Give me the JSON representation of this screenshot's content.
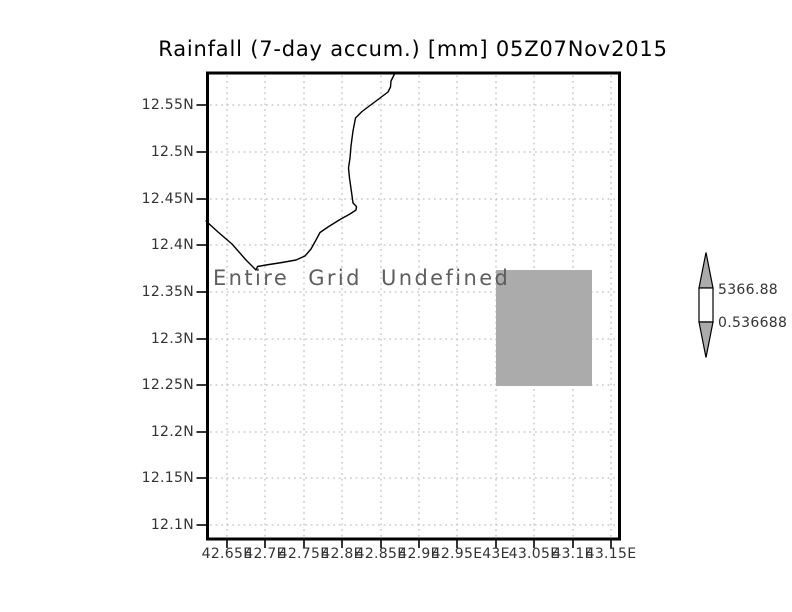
{
  "title": "Rainfall (7-day accum.) [mm] 05Z07Nov2015",
  "undefined_message": "Entire Grid Undefined",
  "axes": {
    "lat_labels": [
      "12.55N",
      "12.5N",
      "12.45N",
      "12.4N",
      "12.35N",
      "12.3N",
      "12.25N",
      "12.2N",
      "12.15N",
      "12.1N"
    ],
    "lon_labels": [
      "42.65E",
      "42.7E",
      "42.75E",
      "42.8E",
      "42.85E",
      "42.9E",
      "42.95E",
      "43E",
      "43.05E",
      "43.1E",
      "43.15E"
    ]
  },
  "colorbar": {
    "max_label": "5366.88",
    "min_label": "0.536688",
    "fill_color": "#ababab"
  },
  "colors": {
    "frame": "#000000",
    "grid": "#b0b0b0",
    "undefined_region_fill": "#ababab",
    "undefined_text": "#5e5e5e"
  },
  "chart_data": {
    "type": "heatmap",
    "title": "Rainfall (7-day accum.) [mm] 05Z07Nov2015",
    "variable": "Rainfall (7-day accum.)",
    "units": "mm",
    "valid_time": "05Z07Nov2015",
    "x_tick_labels": [
      "42.65E",
      "42.7E",
      "42.75E",
      "42.8E",
      "42.85E",
      "42.9E",
      "42.95E",
      "43E",
      "43.05E",
      "43.1E",
      "43.15E"
    ],
    "y_tick_labels": [
      "12.55N",
      "12.5N",
      "12.45N",
      "12.4N",
      "12.35N",
      "12.3N",
      "12.25N",
      "12.2N",
      "12.15N",
      "12.1N"
    ],
    "xlim": [
      42.63,
      43.17
    ],
    "ylim": [
      12.08,
      12.57
    ],
    "grid": "dotted",
    "values": "undefined",
    "annotation": "Entire Grid Undefined",
    "colorbar": {
      "position": "right",
      "min": 0.536688,
      "max": 5366.88
    },
    "undefined_mask_region": {
      "lon": [
        43.0,
        43.125
      ],
      "lat": [
        12.25,
        12.375
      ]
    }
  }
}
